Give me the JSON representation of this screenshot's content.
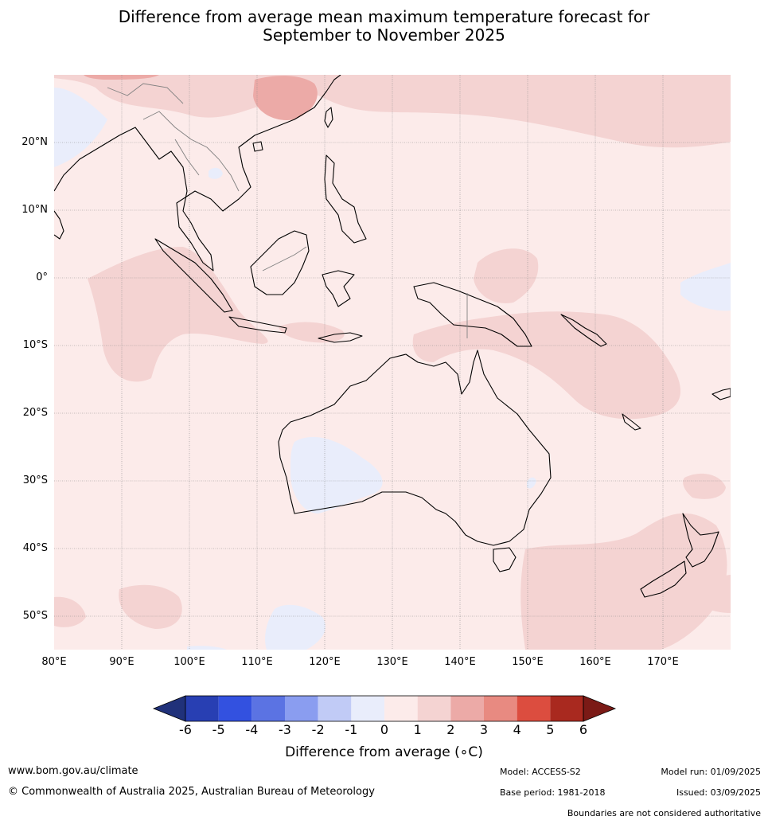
{
  "title": {
    "line1": "Difference from average mean maximum temperature forecast for",
    "line2": "September to November 2025"
  },
  "map": {
    "region": "Australia, Maritime Continent and Southwest Pacific",
    "lat_labels": [
      "20°N",
      "10°N",
      "0°",
      "10°S",
      "20°S",
      "30°S",
      "40°S",
      "50°S"
    ],
    "lon_labels": [
      "80°E",
      "90°E",
      "100°E",
      "110°E",
      "120°E",
      "130°E",
      "140°E",
      "150°E",
      "160°E",
      "170°E"
    ],
    "background_category": "0 to 1",
    "colors": {
      "land_outline": "#000000",
      "borders": "#808080",
      "grid": "#8c8c8c"
    }
  },
  "colorbar": {
    "ticks": [
      "-6",
      "-5",
      "-4",
      "-3",
      "-2",
      "-1",
      "0",
      "1",
      "2",
      "3",
      "4",
      "5",
      "6"
    ],
    "colors": [
      "#20317a",
      "#283fb3",
      "#3351e0",
      "#5b73e3",
      "#8a9df0",
      "#c1cbf6",
      "#e9edfb",
      "#fcebea",
      "#f4d3d2",
      "#ecaaa7",
      "#e88a81",
      "#dc4d3f",
      "#a9291f",
      "#7b1a16"
    ],
    "label": "Difference from average (",
    "label_unit": "∘C)"
  },
  "footer": {
    "website": "www.bom.gov.au/climate",
    "copyright": "© Commonwealth of Australia 2025, Australian Bureau of Meteorology",
    "model": "Model: ACCESS-S2",
    "base_period": "Base period: 1981-2018",
    "model_run": "Model run: 01/09/2025",
    "issued": "Issued: 03/09/2025",
    "disclaimer": "Boundaries are not considered authoritative"
  }
}
